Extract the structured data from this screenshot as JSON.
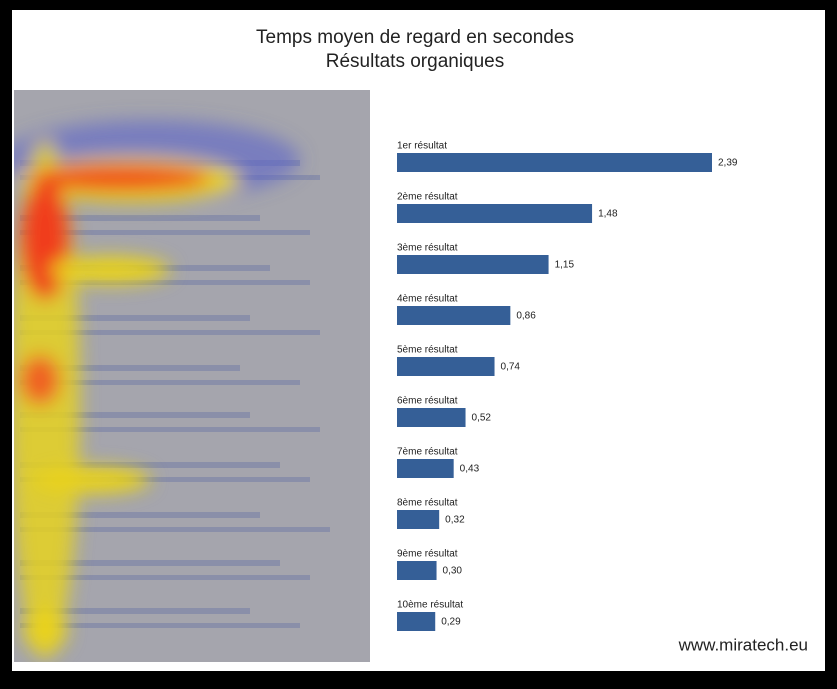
{
  "chart_data": {
    "type": "barh",
    "title": "Temps moyen de regard en secondes",
    "subtitle": "Résultats organiques",
    "categories": [
      "1er résultat",
      "2ème résultat",
      "3ème résultat",
      "4ème résultat",
      "5ème résultat",
      "6ème résultat",
      "7ème résultat",
      "8ème résultat",
      "9ème résultat",
      "10ème résultat"
    ],
    "values": [
      2.39,
      1.48,
      1.15,
      0.86,
      0.74,
      0.52,
      0.43,
      0.32,
      0.3,
      0.29
    ],
    "value_labels": [
      "2,39",
      "1,48",
      "1,15",
      "0,86",
      "0,74",
      "0,52",
      "0,43",
      "0,32",
      "0,30",
      "0,29"
    ],
    "color": "#355f97",
    "source": "www.miratech.eu"
  }
}
